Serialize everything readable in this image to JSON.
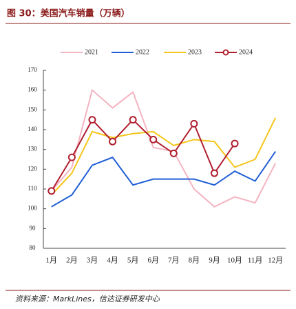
{
  "chart_data": {
    "type": "line",
    "title": "图 30：美国汽车销量（万辆）",
    "source": "资料来源：MarkLines，信达证券研发中心",
    "categories": [
      "1月",
      "2月",
      "3月",
      "4月",
      "5月",
      "6月",
      "7月",
      "8月",
      "9月",
      "10月",
      "11月",
      "12月"
    ],
    "series": [
      {
        "name": "2021",
        "color": "#f4b3c0",
        "values": [
          109,
          121,
          160,
          151,
          159,
          131,
          129,
          110,
          101,
          106,
          103,
          123
        ]
      },
      {
        "name": "2022",
        "color": "#1f5fd6",
        "values": [
          101,
          107,
          122,
          126,
          112,
          115,
          115,
          115,
          112,
          119,
          114,
          129
        ]
      },
      {
        "name": "2023",
        "color": "#f5c518",
        "values": [
          107,
          118,
          139,
          136,
          138,
          139,
          132,
          135,
          134,
          121,
          125,
          146
        ]
      },
      {
        "name": "2024",
        "color": "#b01e2f",
        "markers": true,
        "values": [
          109,
          126,
          145,
          134,
          145,
          135,
          128,
          143,
          118,
          133,
          null,
          null
        ]
      }
    ],
    "ylim": [
      80,
      170
    ],
    "yticks": [
      80,
      90,
      100,
      110,
      120,
      130,
      140,
      150,
      160,
      170
    ],
    "grid": false
  }
}
